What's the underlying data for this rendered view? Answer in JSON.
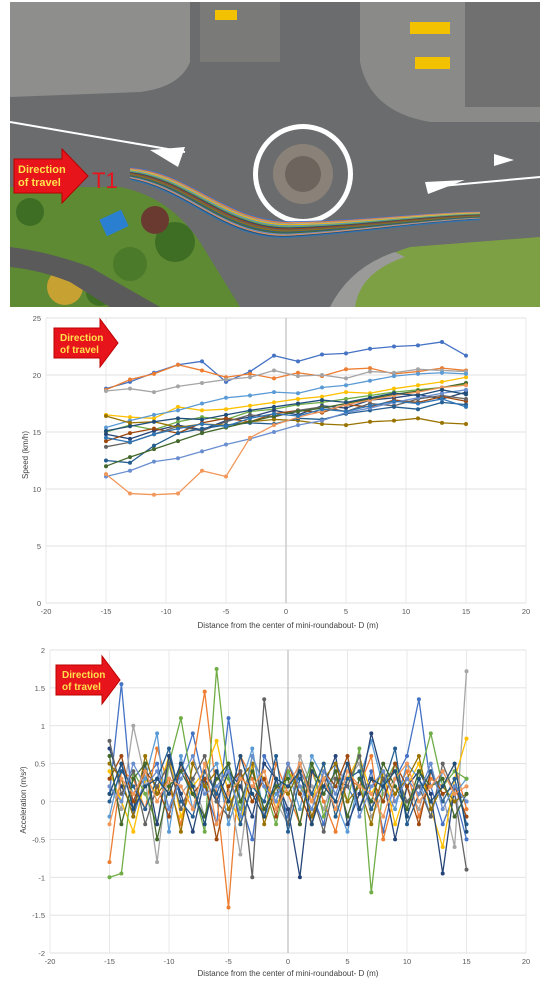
{
  "photo": {
    "arrow_text_line1": "Direction",
    "arrow_text_line2": "of travel",
    "entry_label": "T1",
    "colors": {
      "arrow_fill": "#e8141b",
      "arrow_text": "#ffe14d",
      "label": "#e8141b",
      "road": "#5d5f61",
      "grass": "#5d8a32"
    }
  },
  "charts": {
    "direction_line1": "Direction",
    "direction_line2": "of travel",
    "series_colors": [
      "#4472c4",
      "#ed7d31",
      "#a5a5a5",
      "#ffc000",
      "#5b9bd5",
      "#70ad47",
      "#264478",
      "#9e480e",
      "#636363",
      "#997300",
      "#255e91",
      "#43682b",
      "#698ed0",
      "#f1975a",
      "#1f4e79",
      "#2e75b6"
    ]
  },
  "chart_data": [
    {
      "type": "line",
      "title": "",
      "xlabel": "Distance from the center of mini-roundabout- D (m)",
      "ylabel": "Speed (km/h)",
      "xlim": [
        -20,
        20
      ],
      "ylim": [
        0,
        25
      ],
      "xticks": [
        -20,
        -15,
        -10,
        -5,
        0,
        5,
        10,
        15,
        20
      ],
      "yticks": [
        0,
        5,
        10,
        15,
        20,
        25
      ],
      "x": [
        -15,
        -13,
        -11,
        -9,
        -7,
        -5,
        -3,
        -1,
        1,
        3,
        5,
        7,
        9,
        11,
        13,
        15
      ],
      "series": [
        {
          "values": [
            18.8,
            19.4,
            20.2,
            20.9,
            21.2,
            19.4,
            20.3,
            21.7,
            21.2,
            21.8,
            21.9,
            22.3,
            22.5,
            22.6,
            22.9,
            21.7
          ]
        },
        {
          "values": [
            18.7,
            19.6,
            20.1,
            20.9,
            20.4,
            19.8,
            20.1,
            19.7,
            20.2,
            19.9,
            20.5,
            20.6,
            20.1,
            20.3,
            20.6,
            20.4
          ]
        },
        {
          "values": [
            18.6,
            18.8,
            18.5,
            19.0,
            19.3,
            19.6,
            19.8,
            20.4,
            19.9,
            20.0,
            19.7,
            20.3,
            20.2,
            20.5,
            20.4,
            20.3
          ]
        },
        {
          "values": [
            16.5,
            16.3,
            16.2,
            17.2,
            16.9,
            17.0,
            17.3,
            17.6,
            17.9,
            18.1,
            18.5,
            18.4,
            18.8,
            19.1,
            19.4,
            19.8
          ]
        },
        {
          "values": [
            15.4,
            16.0,
            16.5,
            16.9,
            17.5,
            18.0,
            18.2,
            18.5,
            18.4,
            18.9,
            19.1,
            19.5,
            19.9,
            20.1,
            20.2,
            20.1
          ]
        },
        {
          "values": [
            15.0,
            15.6,
            15.2,
            15.9,
            16.3,
            16.1,
            16.8,
            17.0,
            17.4,
            17.6,
            17.9,
            18.2,
            18.5,
            18.7,
            18.9,
            19.2
          ]
        },
        {
          "values": [
            14.8,
            14.4,
            15.1,
            15.6,
            15.2,
            16.0,
            16.3,
            16.9,
            16.5,
            17.3,
            17.1,
            17.8,
            18.0,
            18.3,
            17.9,
            18.5
          ]
        },
        {
          "values": [
            14.2,
            14.9,
            15.3,
            14.9,
            15.8,
            16.2,
            15.9,
            16.6,
            16.9,
            16.7,
            17.4,
            17.2,
            17.8,
            17.6,
            18.1,
            17.7
          ]
        },
        {
          "values": [
            13.7,
            14.1,
            14.8,
            15.5,
            15.1,
            15.9,
            16.5,
            16.3,
            16.9,
            17.2,
            16.8,
            17.5,
            17.3,
            17.9,
            18.2,
            17.9
          ]
        },
        {
          "values": [
            16.4,
            15.8,
            15.9,
            15.4,
            15.7,
            15.6,
            15.9,
            16.1,
            16.0,
            15.7,
            15.6,
            15.9,
            16.0,
            16.2,
            15.8,
            15.7
          ]
        },
        {
          "values": [
            12.5,
            12.3,
            13.8,
            14.9,
            15.3,
            15.6,
            15.8,
            15.7,
            16.2,
            16.1,
            16.6,
            16.9,
            17.2,
            17.0,
            17.6,
            17.4
          ]
        },
        {
          "values": [
            12.0,
            12.8,
            13.5,
            14.2,
            14.9,
            15.4,
            15.9,
            16.4,
            16.8,
            17.1,
            17.5,
            17.9,
            18.3,
            18.6,
            18.9,
            19.3
          ]
        },
        {
          "values": [
            11.1,
            11.6,
            12.4,
            12.7,
            13.3,
            13.9,
            14.4,
            15.0,
            15.6,
            16.0,
            16.7,
            17.1,
            17.6,
            18.0,
            18.4,
            18.7
          ]
        },
        {
          "values": [
            11.3,
            9.6,
            9.5,
            9.6,
            11.6,
            11.1,
            14.5,
            15.6,
            16.3,
            16.8,
            17.4,
            17.8,
            18.2,
            18.5,
            18.9,
            19.1
          ]
        },
        {
          "values": [
            15.1,
            15.5,
            15.9,
            16.2,
            16.1,
            16.5,
            16.9,
            17.2,
            17.5,
            17.8,
            17.6,
            18.0,
            18.4,
            18.2,
            18.7,
            18.3
          ]
        },
        {
          "values": [
            14.5,
            14.1,
            14.8,
            15.3,
            15.7,
            15.5,
            16.2,
            16.6,
            16.4,
            17.0,
            16.8,
            17.3,
            17.7,
            17.5,
            17.9,
            17.2
          ]
        }
      ]
    },
    {
      "type": "line",
      "title": "",
      "xlabel": "Distance from the center of mini-roundabout- D (m)",
      "ylabel": "Acceleration (m/s²)",
      "xlim": [
        -20,
        20
      ],
      "ylim": [
        -2,
        2
      ],
      "xticks": [
        -20,
        -15,
        -10,
        -5,
        0,
        5,
        10,
        15,
        20
      ],
      "yticks": [
        -2,
        -1.5,
        -1,
        -0.5,
        0,
        0.5,
        1,
        1.5,
        2
      ],
      "x": [
        -15,
        -14,
        -13,
        -12,
        -11,
        -10,
        -9,
        -8,
        -7,
        -6,
        -5,
        -4,
        -3,
        -2,
        -1,
        0,
        1,
        2,
        3,
        4,
        5,
        6,
        7,
        8,
        9,
        10,
        11,
        12,
        13,
        14,
        15
      ],
      "series": [
        {
          "values": [
            0.1,
            1.55,
            -0.2,
            0.3,
            0.5,
            -0.1,
            0.4,
            0.9,
            0.2,
            -0.3,
            1.1,
            0.0,
            -0.5,
            0.6,
            0.3,
            -0.2,
            0.4,
            0.1,
            -0.3,
            0.5,
            0.2,
            -0.1,
            0.4,
            -0.4,
            0.3,
            0.6,
            1.35,
            0.2,
            -0.3,
            0.1,
            -0.5
          ]
        },
        {
          "values": [
            -0.8,
            0.4,
            0.3,
            -0.1,
            0.7,
            0.2,
            -0.3,
            0.5,
            1.45,
            0.1,
            -1.4,
            0.6,
            0.3,
            -0.2,
            0.5,
            0.1,
            -0.3,
            0.4,
            0.0,
            -0.4,
            0.3,
            0.2,
            0.6,
            -0.5,
            0.1,
            0.4,
            -0.2,
            0.3,
            0.2,
            0.5,
            -0.1
          ]
        },
        {
          "values": [
            0.2,
            -0.1,
            1.0,
            0.3,
            -0.8,
            0.5,
            0.1,
            0.3,
            -0.2,
            0.4,
            0.2,
            -0.7,
            0.5,
            0.3,
            0.0,
            -0.3,
            0.6,
            0.2,
            -0.1,
            0.4,
            0.3,
            0.5,
            -0.2,
            0.1,
            0.3,
            0.2,
            -0.1,
            0.4,
            0.1,
            -0.6,
            1.72
          ]
        },
        {
          "values": [
            0.4,
            0.0,
            -0.4,
            0.3,
            0.1,
            0.6,
            -0.2,
            0.2,
            0.4,
            0.8,
            0.1,
            -0.3,
            0.5,
            0.3,
            -0.1,
            0.4,
            0.2,
            0.0,
            0.5,
            -0.2,
            0.3,
            0.6,
            0.1,
            0.4,
            -0.3,
            0.2,
            0.5,
            -0.1,
            -0.6,
            0.3,
            0.83
          ]
        },
        {
          "values": [
            -0.2,
            0.5,
            0.1,
            0.3,
            0.9,
            -0.4,
            0.6,
            -0.1,
            0.3,
            0.5,
            -0.3,
            0.2,
            0.7,
            -0.2,
            0.1,
            0.4,
            -0.1,
            0.6,
            0.3,
            0.0,
            -0.4,
            0.3,
            0.8,
            0.2,
            -0.1,
            0.5,
            0.3,
            -0.2,
            0.4,
            0.1,
            0.3
          ]
        },
        {
          "values": [
            -1.0,
            -0.95,
            0.4,
            0.1,
            -0.3,
            0.5,
            1.1,
            0.2,
            -0.4,
            1.75,
            0.3,
            -0.1,
            0.6,
            0.2,
            -0.3,
            0.4,
            0.1,
            0.5,
            -0.2,
            0.3,
            0.0,
            0.7,
            -1.2,
            0.2,
            0.5,
            -0.1,
            0.3,
            0.9,
            0.2,
            0.4,
            0.3
          ]
        },
        {
          "values": [
            0.7,
            0.2,
            -0.1,
            0.5,
            -0.3,
            0.6,
            0.1,
            -0.4,
            0.3,
            0.0,
            0.4,
            0.2,
            -0.2,
            0.5,
            0.3,
            -0.1,
            -1.0,
            0.4,
            0.2,
            0.6,
            -0.3,
            0.1,
            0.9,
            0.3,
            -0.5,
            0.2,
            0.4,
            0.1,
            -0.95,
            0.2,
            0.0
          ]
        },
        {
          "values": [
            0.3,
            0.6,
            0.0,
            0.4,
            0.2,
            -0.2,
            0.5,
            0.1,
            0.3,
            -0.5,
            0.2,
            0.4,
            0.0,
            0.3,
            -0.2,
            0.5,
            0.1,
            -0.3,
            0.4,
            0.2,
            0.6,
            -0.1,
            0.3,
            0.0,
            0.5,
            0.2,
            -0.3,
            0.4,
            0.1,
            0.2,
            -0.2
          ]
        },
        {
          "values": [
            0.8,
            0.1,
            0.4,
            -0.3,
            0.2,
            0.5,
            -0.1,
            0.3,
            0.6,
            0.0,
            -0.2,
            0.4,
            -1.0,
            1.35,
            0.2,
            -0.3,
            0.5,
            0.1,
            -0.4,
            0.3,
            0.2,
            0.6,
            -0.1,
            0.3,
            0.4,
            0.0,
            0.2,
            -0.2,
            0.5,
            0.1,
            -0.9
          ]
        },
        {
          "values": [
            0.5,
            0.3,
            -0.2,
            0.6,
            0.1,
            0.3,
            -0.4,
            0.5,
            0.2,
            0.4,
            -0.1,
            0.3,
            0.5,
            -0.3,
            0.2,
            0.1,
            0.4,
            -0.2,
            0.3,
            0.5,
            0.0,
            0.2,
            -0.3,
            0.4,
            0.1,
            0.3,
            0.6,
            -0.1,
            0.2,
            0.0,
            0.1
          ]
        },
        {
          "values": [
            0.0,
            0.4,
            0.2,
            -0.1,
            0.3,
            0.7,
            0.0,
            -0.2,
            0.4,
            0.1,
            0.5,
            -0.3,
            0.2,
            0.0,
            0.6,
            -0.4,
            0.3,
            0.1,
            0.5,
            -0.2,
            0.3,
            0.4,
            -0.1,
            0.2,
            0.7,
            -0.3,
            0.1,
            0.4,
            0.0,
            0.3,
            -0.3
          ]
        },
        {
          "values": [
            0.6,
            -0.3,
            0.3,
            0.5,
            -0.5,
            0.2,
            0.4,
            0.1,
            -0.2,
            0.3,
            0.5,
            0.0,
            0.4,
            -0.1,
            0.2,
            0.3,
            -0.3,
            0.5,
            0.1,
            0.4,
            -0.2,
            0.3,
            0.0,
            0.5,
            0.2,
            -0.1,
            0.4,
            0.2,
            0.3,
            -0.2,
            0.1
          ]
        },
        {
          "values": [
            0.2,
            0.0,
            0.5,
            0.2,
            0.4,
            -0.1,
            0.3,
            0.6,
            0.1,
            0.2,
            0.4,
            -0.2,
            0.6,
            0.2,
            0.0,
            0.5,
            0.2,
            -0.1,
            0.4,
            0.1,
            0.5,
            -0.2,
            0.2,
            0.4,
            0.0,
            0.3,
            0.1,
            0.5,
            -0.1,
            0.2,
            0.0
          ]
        },
        {
          "values": [
            -0.3,
            0.3,
            0.1,
            0.4,
            0.0,
            0.3,
            0.2,
            -0.1,
            0.5,
            -0.3,
            0.1,
            0.3,
            0.2,
            0.4,
            -0.1,
            0.2,
            0.5,
            0.0,
            0.3,
            -0.1,
            0.4,
            0.2,
            0.1,
            -0.2,
            0.3,
            0.5,
            0.0,
            0.2,
            0.4,
            0.1,
            0.2
          ]
        },
        {
          "values": [
            0.1,
            0.5,
            -0.1,
            0.2,
            0.3,
            0.1,
            0.5,
            0.2,
            -0.3,
            0.4,
            0.0,
            0.6,
            0.1,
            -0.2,
            0.3,
            0.2,
            0.4,
            -0.3,
            0.2,
            0.0,
            0.5,
            -0.1,
            0.3,
            0.2,
            0.4,
            -0.2,
            0.3,
            0.0,
            0.2,
            0.5,
            -0.4
          ]
        }
      ]
    }
  ]
}
